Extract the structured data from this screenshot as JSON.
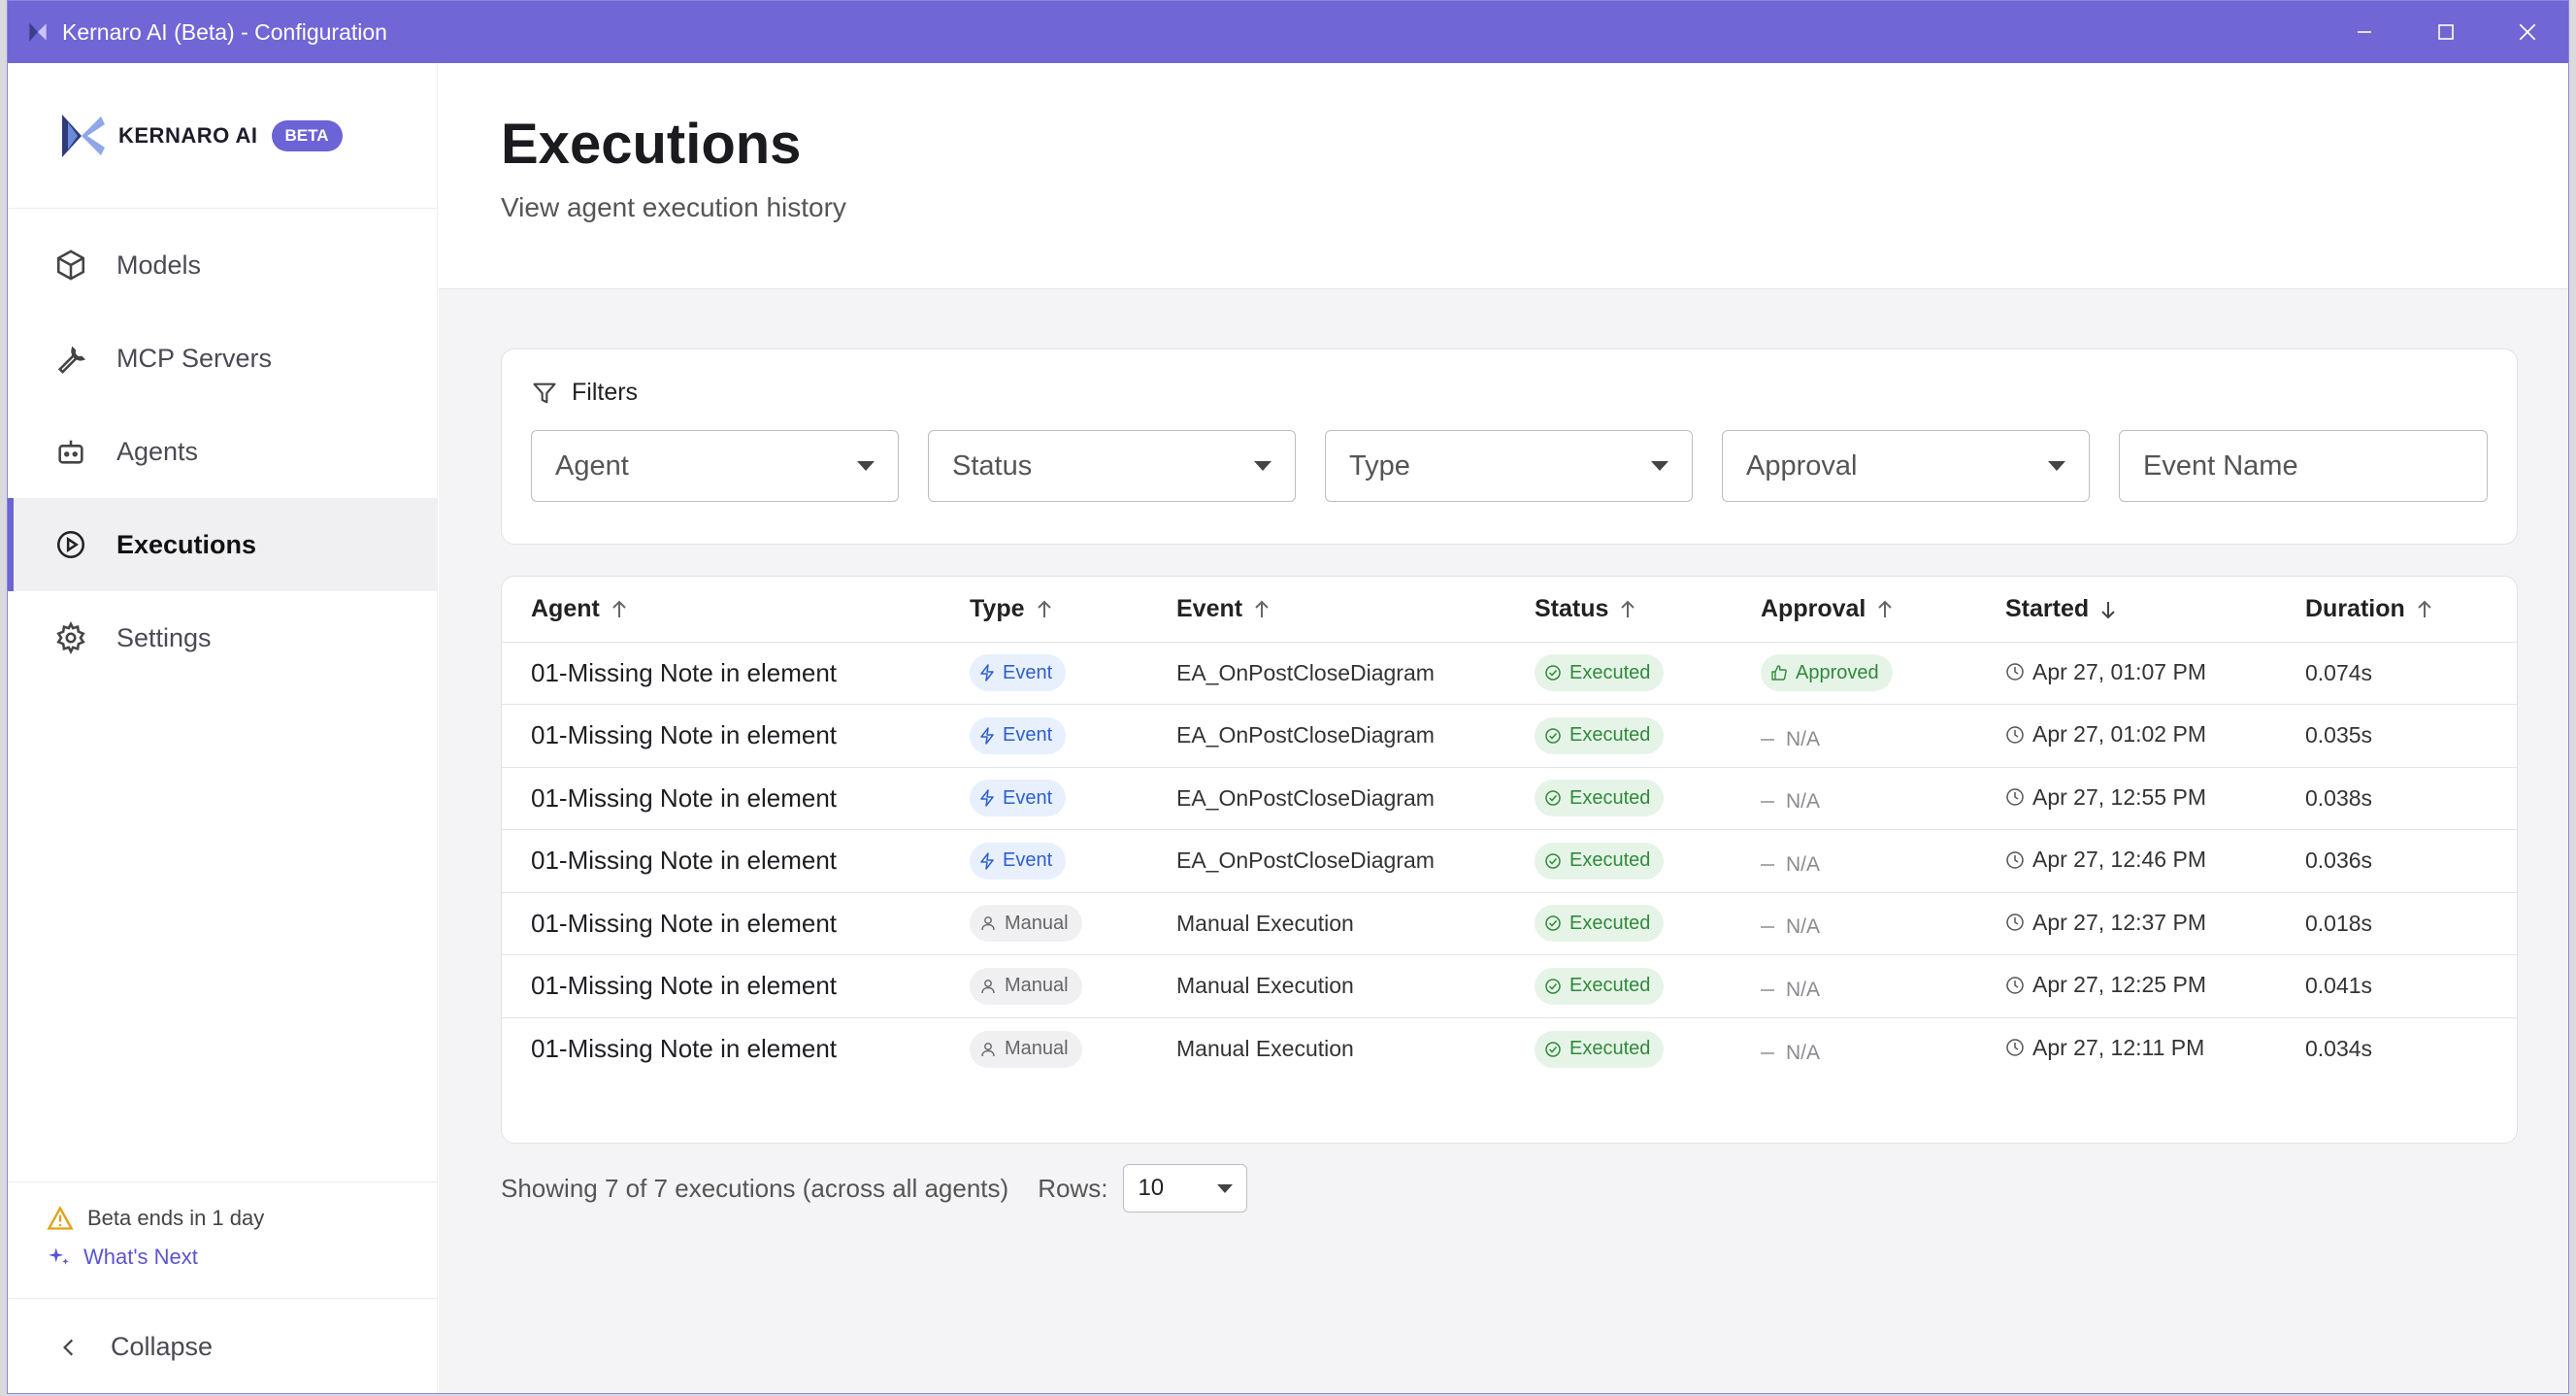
{
  "window": {
    "title": "Kernaro AI (Beta) - Configuration",
    "controls": [
      "minimize-icon",
      "maximize-icon",
      "close-icon"
    ],
    "accent_color": "#7166d6"
  },
  "sidebar": {
    "brand": {
      "name": "KERNARO AI",
      "badge": "BETA"
    },
    "items": [
      {
        "label": "Models",
        "icon": "cube-icon",
        "active": false
      },
      {
        "label": "MCP Servers",
        "icon": "wrench-icon",
        "active": false
      },
      {
        "label": "Agents",
        "icon": "robot-icon",
        "active": false
      },
      {
        "label": "Executions",
        "icon": "play-circle-icon",
        "active": true
      },
      {
        "label": "Settings",
        "icon": "gear-icon",
        "active": false
      }
    ],
    "beta_notice": "Beta ends in 1 day",
    "whats_next": "What's Next",
    "collapse": "Collapse"
  },
  "header": {
    "title": "Executions",
    "subtitle": "View agent execution history"
  },
  "filters": {
    "label": "Filters",
    "agent": "Agent",
    "status": "Status",
    "type": "Type",
    "approval": "Approval",
    "event_name_placeholder": "Event Name"
  },
  "table": {
    "columns": {
      "agent": "Agent",
      "type": "Type",
      "event": "Event",
      "status": "Status",
      "approval": "Approval",
      "started": "Started",
      "duration": "Duration"
    },
    "rows": [
      {
        "agent": "01-Missing Note in element",
        "type": "Event",
        "event": "EA_OnPostCloseDiagram",
        "status": "Executed",
        "approval": "Approved",
        "started": "Apr 27, 01:07 PM",
        "duration": "0.074s"
      },
      {
        "agent": "01-Missing Note in element",
        "type": "Event",
        "event": "EA_OnPostCloseDiagram",
        "status": "Executed",
        "approval": "N/A",
        "started": "Apr 27, 01:02 PM",
        "duration": "0.035s"
      },
      {
        "agent": "01-Missing Note in element",
        "type": "Event",
        "event": "EA_OnPostCloseDiagram",
        "status": "Executed",
        "approval": "N/A",
        "started": "Apr 27, 12:55 PM",
        "duration": "0.038s"
      },
      {
        "agent": "01-Missing Note in element",
        "type": "Event",
        "event": "EA_OnPostCloseDiagram",
        "status": "Executed",
        "approval": "N/A",
        "started": "Apr 27, 12:46 PM",
        "duration": "0.036s"
      },
      {
        "agent": "01-Missing Note in element",
        "type": "Manual",
        "event": "Manual Execution",
        "status": "Executed",
        "approval": "N/A",
        "started": "Apr 27, 12:37 PM",
        "duration": "0.018s"
      },
      {
        "agent": "01-Missing Note in element",
        "type": "Manual",
        "event": "Manual Execution",
        "status": "Executed",
        "approval": "N/A",
        "started": "Apr 27, 12:25 PM",
        "duration": "0.041s"
      },
      {
        "agent": "01-Missing Note in element",
        "type": "Manual",
        "event": "Manual Execution",
        "status": "Executed",
        "approval": "N/A",
        "started": "Apr 27, 12:11 PM",
        "duration": "0.034s"
      }
    ]
  },
  "pagination": {
    "summary": "Showing 7 of 7 executions (across all agents)",
    "rows_label": "Rows:",
    "rows_value": "10"
  }
}
